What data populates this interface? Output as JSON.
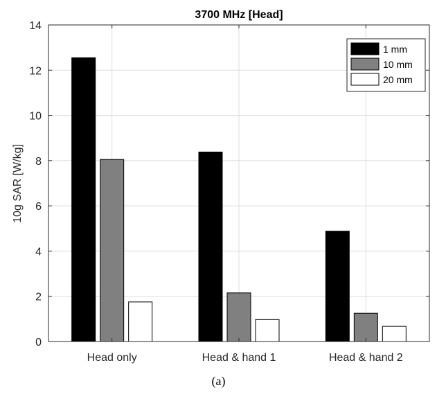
{
  "chart_data": {
    "type": "bar",
    "title": "3700 MHz [Head]",
    "xlabel": "",
    "ylabel": "10g SAR [W/kg]",
    "categories": [
      "Head only",
      "Head & hand 1",
      "Head & hand 2"
    ],
    "series": [
      {
        "name": "1 mm",
        "color": "#000000",
        "values": [
          12.55,
          8.38,
          4.88
        ]
      },
      {
        "name": "10 mm",
        "color": "#808080",
        "values": [
          8.05,
          2.15,
          1.25
        ]
      },
      {
        "name": "20 mm",
        "color": "#ffffff",
        "values": [
          1.75,
          0.97,
          0.67
        ]
      }
    ],
    "ylim": [
      0,
      14
    ],
    "yticks": [
      0,
      2,
      4,
      6,
      8,
      10,
      12,
      14
    ],
    "grid": true,
    "legend_position": "top-right"
  },
  "caption": "(a)"
}
